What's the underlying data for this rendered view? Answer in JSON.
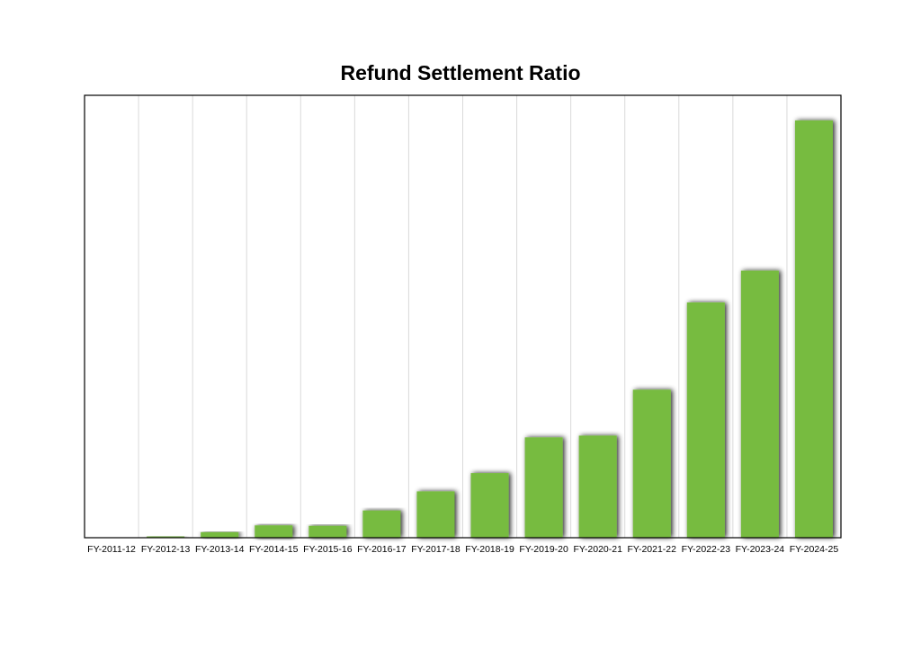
{
  "chart_data": {
    "type": "bar",
    "title": "Refund Settlement Ratio",
    "xlabel": "",
    "ylabel": "",
    "categories": [
      "FY-2011-12",
      "FY-2012-13",
      "FY-2013-14",
      "FY-2014-15",
      "FY-2015-16",
      "FY-2016-17",
      "FY-2017-18",
      "FY-2018-19",
      "FY-2019-20",
      "FY-2020-21",
      "FY-2021-22",
      "FY-2022-23",
      "FY-2023-24",
      "FY-2024-25"
    ],
    "values": [
      0,
      0.3,
      1.3,
      2.9,
      2.8,
      6.4,
      10.9,
      15.2,
      23.6,
      24.0,
      34.8,
      55.3,
      62.8,
      98.1
    ],
    "ylim": [
      0,
      104
    ],
    "grid": "vertical",
    "legend": "none",
    "colors": {
      "bar": "#77bb40",
      "grid": "#d9d9d9",
      "frame": "#000000",
      "shadow": "#000000"
    }
  }
}
